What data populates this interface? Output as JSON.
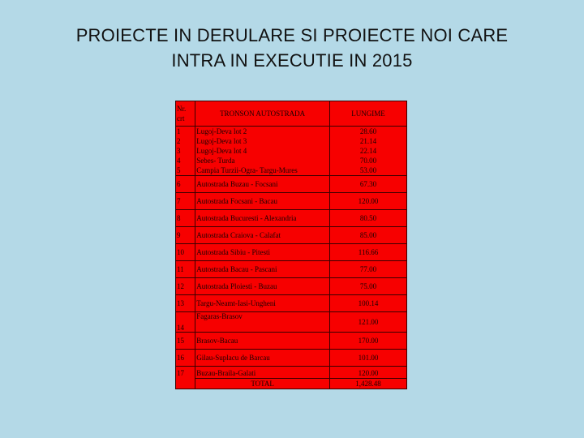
{
  "title": {
    "line1": "PROIECTE IN DERULARE SI PROIECTE NOI CARE",
    "line2": "INTRA IN EXECUTIE  IN 2015"
  },
  "table": {
    "headers": {
      "nr_line1": "Nr.",
      "nr_line2": "crt",
      "tronson": "TRONSON AUTOSTRADA",
      "lungime": "LUNGIME"
    },
    "group": {
      "nrs": [
        "1",
        "2",
        "3",
        "4",
        "5"
      ],
      "tronsons": [
        "Lugoj-Deva lot 2",
        "Lugoj-Deva lot 3",
        "Lugoj-Deva lot 4",
        "Sebes- Turda",
        "Campia Turzii-Ogra- Targu-Mures"
      ],
      "lengths": [
        "28.60",
        "21.14",
        "22.14",
        "70.00",
        "53.00"
      ]
    },
    "rows": [
      {
        "nr": "6",
        "tronson": "Autostrada Buzau - Focsani",
        "len": "67.30"
      },
      {
        "nr": "7",
        "tronson": "Autostrada Focsani - Bacau",
        "len": "120.00"
      },
      {
        "nr": "8",
        "tronson": "Autostrada Bucuresti - Alexandria",
        "len": "80.50"
      },
      {
        "nr": "9",
        "tronson": "Autostrada Craiova - Calafat",
        "len": "85.00"
      },
      {
        "nr": "10",
        "tronson": "Autostrada Sibiu - Pitesti",
        "len": "116.66"
      },
      {
        "nr": "11",
        "tronson": "Autostrada Bacau - Pascani",
        "len": "77.00"
      },
      {
        "nr": "12",
        "tronson": "Autostrada Ploiesti - Buzau",
        "len": "75.00"
      },
      {
        "nr": "13",
        "tronson": "Targu-Neamt-Iasi-Ungheni",
        "len": "100.14"
      },
      {
        "nr": "14",
        "tronson": "Fagaras-Brasov",
        "len": "121.00"
      },
      {
        "nr": "15",
        "tronson": "Brasov-Bacau",
        "len": "170.00"
      },
      {
        "nr": "16",
        "tronson": "Gilau-Suplacu de Barcau",
        "len": "101.00"
      }
    ],
    "last": {
      "nr": "17",
      "tronson": "Buzau-Braila-Galati",
      "len": "120.00",
      "total_label": "TOTAL",
      "total_value": "1,428.48"
    }
  }
}
